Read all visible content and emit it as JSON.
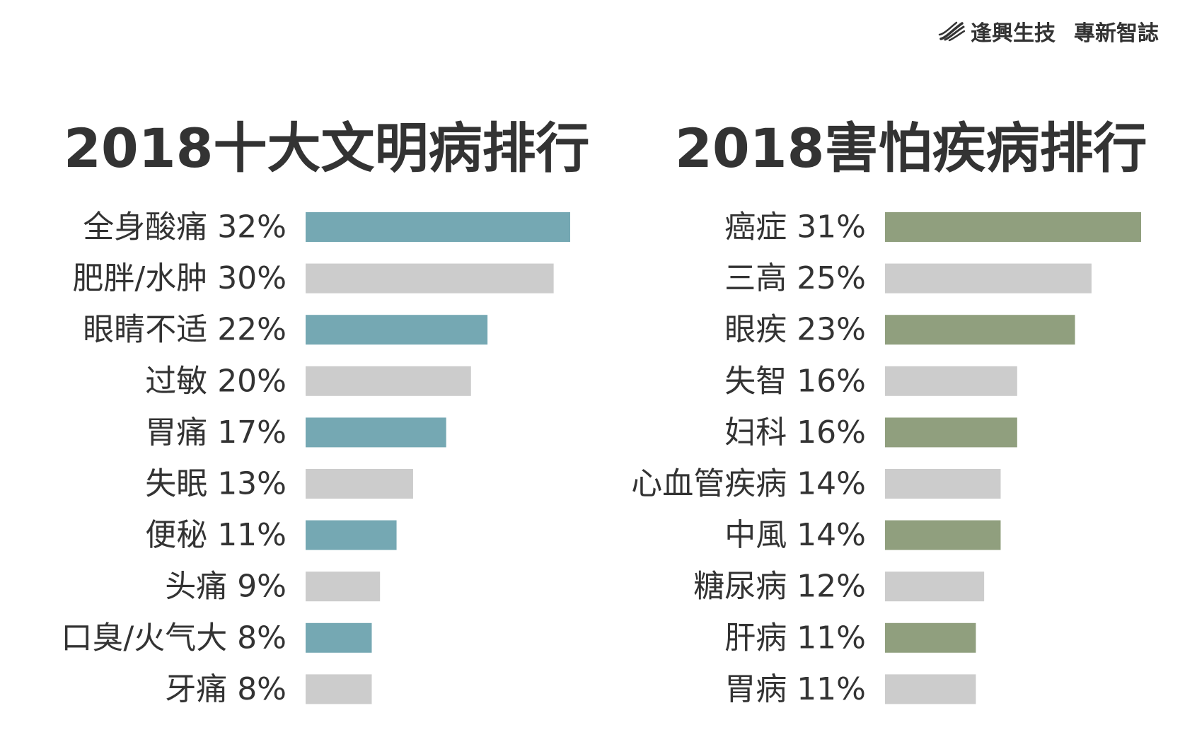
{
  "brand": {
    "name": "逢興生技",
    "tagline": "專新智誌",
    "logo_icon": "swoosh-logo-icon"
  },
  "colors": {
    "left_highlight": "#75a8b3",
    "right_highlight": "#909f7e",
    "alternate": "#cccccc",
    "text": "#333333"
  },
  "chart_data": [
    {
      "type": "bar",
      "orientation": "horizontal",
      "title": "2018十大文明病排行",
      "categories": [
        "全身酸痛 32%",
        "肥胖/水肿 30%",
        "眼睛不适 22%",
        "过敏 20%",
        "胃痛 17%",
        "失眠 13%",
        "便秘 11%",
        "头痛   9%",
        "口臭/火气大   8%",
        "牙痛   8%"
      ],
      "values": [
        32,
        30,
        22,
        20,
        17,
        13,
        11,
        9,
        8,
        8
      ],
      "unit": "%",
      "bar_colors": [
        "#75a8b3",
        "#cccccc",
        "#75a8b3",
        "#cccccc",
        "#75a8b3",
        "#cccccc",
        "#75a8b3",
        "#cccccc",
        "#75a8b3",
        "#cccccc"
      ],
      "xlim": [
        0,
        32
      ],
      "grid": false
    },
    {
      "type": "bar",
      "orientation": "horizontal",
      "title": "2018害怕疾病排行",
      "categories": [
        "癌症 31%",
        "三高 25%",
        "眼疾 23%",
        "失智 16%",
        "妇科 16%",
        "心血管疾病 14%",
        "中風 14%",
        "糖尿病 12%",
        "肝病 11%",
        "胃病 11%"
      ],
      "values": [
        31,
        25,
        23,
        16,
        16,
        14,
        14,
        12,
        11,
        11
      ],
      "unit": "%",
      "bar_colors": [
        "#909f7e",
        "#cccccc",
        "#909f7e",
        "#cccccc",
        "#909f7e",
        "#cccccc",
        "#909f7e",
        "#cccccc",
        "#909f7e",
        "#cccccc"
      ],
      "xlim": [
        0,
        31
      ],
      "grid": false
    }
  ]
}
